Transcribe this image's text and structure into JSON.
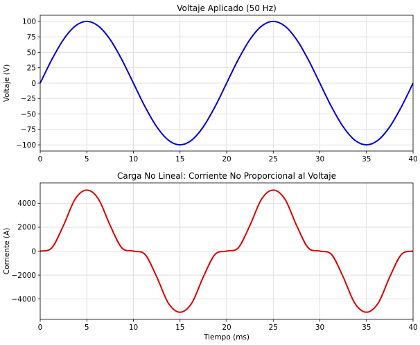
{
  "chart_data": [
    {
      "type": "line",
      "title": "Voltaje Aplicado (50 Hz)",
      "xlabel": "",
      "ylabel": "Voltaje (V)",
      "xlim": [
        0,
        40
      ],
      "ylim": [
        -110,
        110
      ],
      "x_ticks": [
        0,
        5,
        10,
        15,
        20,
        25,
        30,
        35,
        40
      ],
      "x_tick_labels": [
        "0",
        "5",
        "10",
        "15",
        "20",
        "25",
        "30",
        "35",
        "40"
      ],
      "y_ticks": [
        100,
        75,
        50,
        25,
        0,
        -25,
        -50,
        -75,
        -100
      ],
      "y_tick_labels": [
        "100",
        "75",
        "50",
        "25",
        "0",
        "−25",
        "−50",
        "−75",
        "−100"
      ],
      "grid": true,
      "series": [
        {
          "color": "#0000dd",
          "x": [
            0,
            1.25,
            2.5,
            3.75,
            5,
            6.25,
            7.5,
            8.75,
            10,
            11.25,
            12.5,
            13.75,
            15,
            16.25,
            17.5,
            18.75,
            20,
            21.25,
            22.5,
            23.75,
            25,
            26.25,
            27.5,
            28.75,
            30,
            31.25,
            32.5,
            33.75,
            35,
            36.25,
            37.5,
            38.75,
            40
          ],
          "y": [
            0,
            38.3,
            70.7,
            92.4,
            100,
            92.4,
            70.7,
            38.3,
            0,
            -38.3,
            -70.7,
            -92.4,
            -100,
            -92.4,
            -70.7,
            -38.3,
            0,
            38.3,
            70.7,
            92.4,
            100,
            92.4,
            70.7,
            38.3,
            0,
            -38.3,
            -70.7,
            -92.4,
            -100,
            -92.4,
            -70.7,
            -38.3,
            0
          ]
        }
      ]
    },
    {
      "type": "line",
      "title": "Carga No Lineal: Corriente No Proporcional al Voltaje",
      "xlabel": "Tiempo (ms)",
      "ylabel": "Corriente (A)",
      "xlim": [
        0,
        40
      ],
      "ylim": [
        -5700,
        5700
      ],
      "x_ticks": [
        0,
        5,
        10,
        15,
        20,
        25,
        30,
        35,
        40
      ],
      "x_tick_labels": [
        "0",
        "5",
        "10",
        "15",
        "20",
        "25",
        "30",
        "35",
        "40"
      ],
      "y_ticks": [
        4000,
        2000,
        0,
        -2000,
        -4000
      ],
      "y_tick_labels": [
        "4000",
        "2000",
        "0",
        "−2000",
        "−4000"
      ],
      "grid": true,
      "series": [
        {
          "color": "#dd0000",
          "x": [
            0,
            1.25,
            2.5,
            3.75,
            5,
            6.25,
            7.5,
            8.75,
            10,
            11.25,
            12.5,
            13.75,
            15,
            16.25,
            17.5,
            18.75,
            20,
            21.25,
            22.5,
            23.75,
            25,
            26.25,
            27.5,
            28.75,
            30,
            31.25,
            32.5,
            33.75,
            35,
            36.25,
            37.5,
            38.75,
            40
          ],
          "y": [
            0,
            280,
            2150,
            4350,
            5100,
            4350,
            2150,
            280,
            0,
            -280,
            -2150,
            -4350,
            -5100,
            -4350,
            -2150,
            -280,
            0,
            280,
            2150,
            4350,
            5100,
            4350,
            2150,
            280,
            0,
            -280,
            -2150,
            -4350,
            -5100,
            -4350,
            -2150,
            -280,
            0
          ]
        }
      ]
    }
  ]
}
